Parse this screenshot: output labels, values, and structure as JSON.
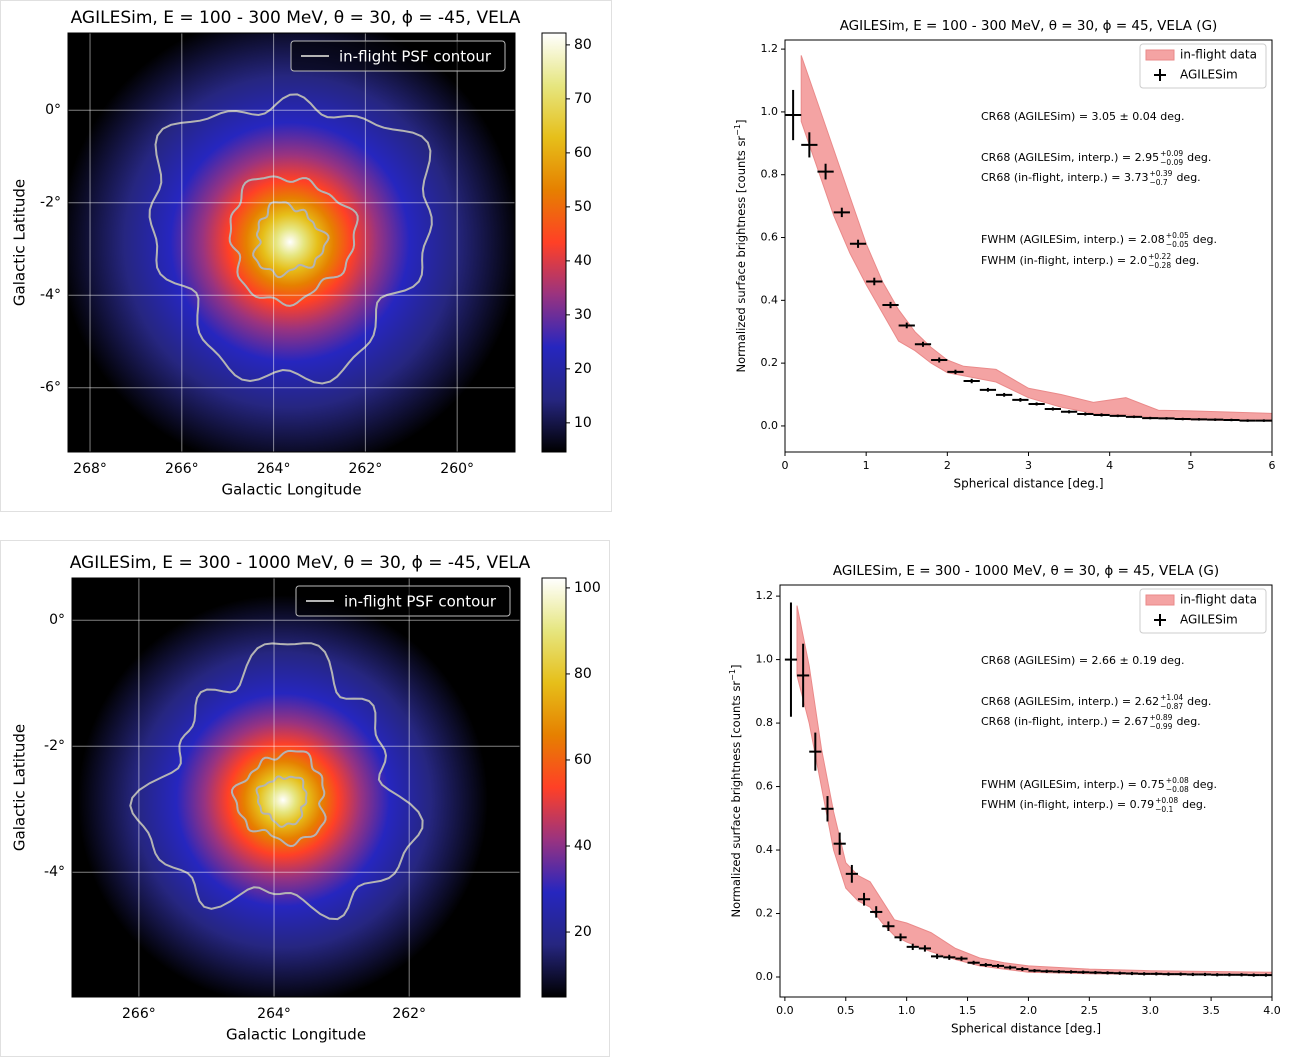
{
  "chart_data": [
    {
      "type": "skymap",
      "title": "AGILESim, E = 100 - 300 MeV,  θ = 30, ϕ = -45, VELA",
      "xlabel": "Galactic Longitude",
      "ylabel": "Galactic Latitude",
      "xlim": [
        268.48,
        258.74
      ],
      "ylim": [
        -7.39,
        1.67
      ],
      "xticks": [
        {
          "value": 268,
          "label": "268°"
        },
        {
          "value": 266,
          "label": "266°"
        },
        {
          "value": 264,
          "label": "264°"
        },
        {
          "value": 262,
          "label": "262°"
        },
        {
          "value": 260,
          "label": "260°"
        }
      ],
      "yticks": [
        {
          "value": 0,
          "label": "0°"
        },
        {
          "value": -2,
          "label": "-2°"
        },
        {
          "value": -4,
          "label": "-4°"
        },
        {
          "value": -6,
          "label": "-6°"
        }
      ],
      "grid": true,
      "legend": "upper right",
      "contour_label": "in-flight PSF contour",
      "contour_color": "#b4b4b4",
      "colormap": [
        "#000000",
        "#262680",
        "#2626bf",
        "#993380",
        "#ff4026",
        "#e68000",
        "#e6bf1a",
        "#e6e680",
        "#ffffff"
      ],
      "clim": [
        4.6,
        82.2
      ],
      "cticks": [
        10,
        20,
        30,
        40,
        50,
        60,
        70,
        80
      ]
    },
    {
      "type": "profile",
      "title": "AGILESim, E = 100 - 300 MeV,  θ = 30, ϕ = 45, VELA (G)",
      "xlabel": "Spherical distance [deg.]",
      "ylabel": "Normalized surface brightness [counts sr",
      "ylabel_sup": "−1",
      "ylabel_end": "]",
      "xlim": [
        0,
        6
      ],
      "ylim": [
        -0.083,
        1.229
      ],
      "xticks": [
        0,
        1,
        2,
        3,
        4,
        5,
        6
      ],
      "yticks": [
        {
          "value": 0,
          "label": "0.0"
        },
        0.2,
        0.4,
        0.6,
        0.8,
        {
          "value": 1,
          "label": "1.0"
        },
        1.2
      ],
      "legend": "upper right",
      "band": {
        "name": "in-flight data",
        "color": "#f4a3a3",
        "x": [
          0.2,
          0.4,
          0.6,
          0.8,
          1.0,
          1.2,
          1.4,
          1.6,
          1.8,
          2.0,
          2.2,
          2.6,
          3.0,
          3.4,
          3.8,
          4.2,
          4.6,
          5.0,
          6.0
        ],
        "upper": [
          1.18,
          1.03,
          0.88,
          0.73,
          0.58,
          0.46,
          0.37,
          0.3,
          0.25,
          0.21,
          0.19,
          0.18,
          0.12,
          0.1,
          0.075,
          0.09,
          0.05,
          0.048,
          0.04
        ],
        "lower": [
          0.97,
          0.82,
          0.67,
          0.55,
          0.45,
          0.36,
          0.27,
          0.24,
          0.2,
          0.17,
          0.16,
          0.14,
          0.09,
          0.06,
          0.04,
          0.035,
          0.025,
          0.02,
          0.015
        ]
      },
      "series": [
        {
          "name": "AGILESim",
          "color": "#000000",
          "x": [
            0.1,
            0.3,
            0.5,
            0.7,
            0.9,
            1.1,
            1.3,
            1.5,
            1.7,
            1.9,
            2.1,
            2.3,
            2.5,
            2.7,
            2.9,
            3.1,
            3.3,
            3.5,
            3.7,
            3.9,
            4.1,
            4.3,
            4.5,
            4.7,
            4.9,
            5.1,
            5.3,
            5.5,
            5.7,
            5.9
          ],
          "values": [
            0.99,
            0.895,
            0.81,
            0.68,
            0.58,
            0.46,
            0.385,
            0.32,
            0.26,
            0.21,
            0.172,
            0.143,
            0.115,
            0.099,
            0.083,
            0.07,
            0.054,
            0.045,
            0.038,
            0.035,
            0.032,
            0.029,
            0.025,
            0.024,
            0.022,
            0.021,
            0.02,
            0.019,
            0.017,
            0.017
          ],
          "yerr": [
            0.08,
            0.04,
            0.025,
            0.015,
            0.013,
            0.012,
            0.01,
            0.009,
            0.008,
            0.008,
            0.007,
            0.007,
            0.006,
            0.006,
            0.006,
            0.005,
            0.005,
            0.005,
            0.005,
            0.005,
            0.004,
            0.004,
            0.004,
            0.004,
            0.004,
            0.004,
            0.004,
            0.004,
            0.004,
            0.004
          ],
          "xerr": [
            0.1,
            0.1,
            0.1,
            0.1,
            0.1,
            0.1,
            0.1,
            0.1,
            0.1,
            0.1,
            0.1,
            0.1,
            0.1,
            0.1,
            0.1,
            0.1,
            0.1,
            0.1,
            0.1,
            0.1,
            0.1,
            0.1,
            0.1,
            0.1,
            0.1,
            0.1,
            0.1,
            0.1,
            0.1,
            0.1
          ]
        }
      ],
      "annotations": [
        {
          "text": "CR68 (AGILESim) = 3.05 ± 0.04 deg."
        },
        {
          "text": "CR68 (AGILESim, interp.) = 2.95",
          "upper": "+0.09",
          "lower": "−0.09",
          "after": "deg."
        },
        {
          "text": "CR68 (in-flight, interp.) = 3.73",
          "upper": "+0.39",
          "lower": "−0.7",
          "after": "deg."
        },
        {
          "text": "FWHM (AGILESim, interp.) = 2.08",
          "upper": "+0.05",
          "lower": "−0.05",
          "after": "deg."
        },
        {
          "text": "FWHM (in-flight, interp.) = 2.0",
          "upper": "+0.22",
          "lower": "−0.28",
          "after": "deg."
        }
      ]
    },
    {
      "type": "skymap",
      "title": "AGILESim, E = 300 - 1000 MeV,  θ = 30, ϕ = -45, VELA",
      "xlabel": "Galactic Longitude",
      "ylabel": "Galactic Latitude",
      "xlim": [
        266.99,
        260.36
      ],
      "ylim": [
        -5.98,
        0.67
      ],
      "xticks": [
        {
          "value": 266,
          "label": "266°"
        },
        {
          "value": 264,
          "label": "264°"
        },
        {
          "value": 262,
          "label": "262°"
        }
      ],
      "yticks": [
        {
          "value": 0,
          "label": "0°"
        },
        {
          "value": -2,
          "label": "-2°"
        },
        {
          "value": -4,
          "label": "-4°"
        }
      ],
      "grid": true,
      "legend": "upper right",
      "contour_label": "in-flight PSF contour",
      "contour_color": "#b4b4b4",
      "colormap": [
        "#000000",
        "#262680",
        "#2626bf",
        "#993380",
        "#ff4026",
        "#e68000",
        "#e6bf1a",
        "#e6e680",
        "#ffffff"
      ],
      "clim": [
        4.9,
        102.3
      ],
      "cticks": [
        20,
        40,
        60,
        80,
        100
      ]
    },
    {
      "type": "profile",
      "title": "AGILESim, E = 300 - 1000 MeV,  θ = 30, ϕ = 45, VELA (G)",
      "xlabel": "Spherical distance [deg.]",
      "ylabel": "Normalized surface brightness [counts sr",
      "ylabel_sup": "−1",
      "ylabel_end": "]",
      "xlim": [
        -0.04,
        4.0
      ],
      "ylim": [
        -0.063,
        1.235
      ],
      "xticks": [
        {
          "value": 0,
          "label": "0.0"
        },
        0.5,
        {
          "value": 1,
          "label": "1.0"
        },
        1.5,
        {
          "value": 2,
          "label": "2.0"
        },
        2.5,
        {
          "value": 3,
          "label": "3.0"
        },
        3.5,
        {
          "value": 4,
          "label": "4.0"
        }
      ],
      "yticks": [
        {
          "value": 0,
          "label": "0.0"
        },
        0.2,
        0.4,
        0.6,
        0.8,
        {
          "value": 1,
          "label": "1.0"
        },
        1.2
      ],
      "legend": "upper right",
      "band": {
        "name": "in-flight data",
        "color": "#f4a3a3",
        "x": [
          0.1,
          0.2,
          0.3,
          0.4,
          0.5,
          0.6,
          0.7,
          0.8,
          0.9,
          1.0,
          1.2,
          1.4,
          1.6,
          1.8,
          2.0,
          2.5,
          3.0,
          4.0
        ],
        "upper": [
          1.17,
          0.98,
          0.72,
          0.52,
          0.36,
          0.32,
          0.3,
          0.24,
          0.18,
          0.17,
          0.14,
          0.09,
          0.06,
          0.045,
          0.035,
          0.025,
          0.02,
          0.015
        ],
        "lower": [
          0.95,
          0.8,
          0.6,
          0.4,
          0.28,
          0.24,
          0.22,
          0.17,
          0.13,
          0.11,
          0.08,
          0.055,
          0.035,
          0.025,
          0.015,
          0.01,
          0.008,
          0.005
        ]
      },
      "series": [
        {
          "name": "AGILESim",
          "color": "#000000",
          "x": [
            0.05,
            0.15,
            0.25,
            0.35,
            0.45,
            0.55,
            0.65,
            0.75,
            0.85,
            0.95,
            1.05,
            1.15,
            1.25,
            1.35,
            1.45,
            1.55,
            1.65,
            1.75,
            1.85,
            1.95,
            2.05,
            2.15,
            2.25,
            2.35,
            2.45,
            2.55,
            2.65,
            2.75,
            2.85,
            2.95,
            3.05,
            3.15,
            3.25,
            3.35,
            3.45,
            3.55,
            3.65,
            3.75,
            3.85,
            3.95
          ],
          "values": [
            1.0,
            0.95,
            0.71,
            0.53,
            0.42,
            0.325,
            0.245,
            0.205,
            0.16,
            0.125,
            0.095,
            0.09,
            0.065,
            0.062,
            0.058,
            0.045,
            0.038,
            0.035,
            0.03,
            0.025,
            0.02,
            0.018,
            0.017,
            0.016,
            0.015,
            0.014,
            0.013,
            0.012,
            0.011,
            0.01,
            0.01,
            0.009,
            0.009,
            0.008,
            0.008,
            0.007,
            0.007,
            0.007,
            0.006,
            0.006
          ],
          "yerr": [
            0.18,
            0.1,
            0.06,
            0.04,
            0.035,
            0.028,
            0.02,
            0.018,
            0.015,
            0.012,
            0.01,
            0.01,
            0.008,
            0.008,
            0.007,
            0.006,
            0.006,
            0.006,
            0.006,
            0.006,
            0.005,
            0.005,
            0.005,
            0.005,
            0.005,
            0.005,
            0.005,
            0.005,
            0.005,
            0.005,
            0.005,
            0.005,
            0.005,
            0.005,
            0.005,
            0.005,
            0.005,
            0.005,
            0.005,
            0.005
          ],
          "xerr": [
            0.05,
            0.05,
            0.05,
            0.05,
            0.05,
            0.05,
            0.05,
            0.05,
            0.05,
            0.05,
            0.05,
            0.05,
            0.05,
            0.05,
            0.05,
            0.05,
            0.05,
            0.05,
            0.05,
            0.05,
            0.05,
            0.05,
            0.05,
            0.05,
            0.05,
            0.05,
            0.05,
            0.05,
            0.05,
            0.05,
            0.05,
            0.05,
            0.05,
            0.05,
            0.05,
            0.05,
            0.05,
            0.05,
            0.05,
            0.05
          ]
        }
      ],
      "annotations": [
        {
          "text": "CR68 (AGILESim) = 2.66 ± 0.19 deg."
        },
        {
          "text": "CR68 (AGILESim, interp.) = 2.62",
          "upper": "+1.04",
          "lower": "−0.87",
          "after": "deg."
        },
        {
          "text": "CR68 (in-flight, interp.) = 2.67",
          "upper": "+0.89",
          "lower": "−0.99",
          "after": "deg."
        },
        {
          "text": "FWHM (AGILESim, interp.) = 0.75",
          "upper": "+0.08",
          "lower": "−0.08",
          "after": "deg."
        },
        {
          "text": "FWHM (in-flight, interp.) = 0.79",
          "upper": "+0.08",
          "lower": "−0.1",
          "after": "deg."
        }
      ]
    }
  ]
}
